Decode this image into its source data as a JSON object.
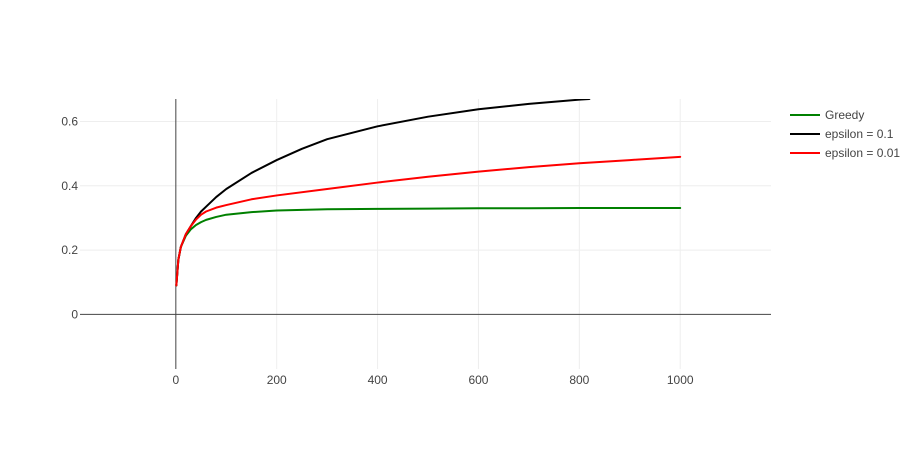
{
  "chart_data": {
    "type": "line",
    "title": "",
    "xlabel": "",
    "ylabel": "",
    "xlim": [
      -190,
      1180
    ],
    "ylim": [
      -0.17,
      0.67
    ],
    "grid": true,
    "legend_position": "top-right",
    "x_ticks": [
      0,
      200,
      400,
      600,
      800,
      1000
    ],
    "x_tick_labels": [
      "0",
      "200",
      "400",
      "600",
      "800",
      "1000"
    ],
    "y_ticks": [
      0,
      0.2,
      0.4,
      0.6
    ],
    "y_tick_labels": [
      "0",
      "0.2",
      "0.4",
      "0.6"
    ],
    "series": [
      {
        "name": "Greedy",
        "color": "#008000",
        "x": [
          1,
          5,
          10,
          20,
          30,
          40,
          50,
          60,
          80,
          100,
          150,
          200,
          300,
          400,
          500,
          600,
          700,
          800,
          900,
          1000
        ],
        "y": [
          0.09,
          0.17,
          0.21,
          0.245,
          0.265,
          0.278,
          0.287,
          0.294,
          0.303,
          0.31,
          0.318,
          0.323,
          0.327,
          0.328,
          0.329,
          0.33,
          0.33,
          0.331,
          0.331,
          0.331
        ]
      },
      {
        "name": "epsilon = 0.1",
        "color": "#000000",
        "x": [
          1,
          5,
          10,
          20,
          30,
          40,
          50,
          60,
          80,
          100,
          150,
          200,
          250,
          300,
          400,
          500,
          600,
          700,
          800,
          820
        ],
        "y": [
          0.09,
          0.17,
          0.21,
          0.25,
          0.275,
          0.3,
          0.32,
          0.335,
          0.365,
          0.39,
          0.44,
          0.48,
          0.515,
          0.545,
          0.585,
          0.615,
          0.638,
          0.655,
          0.668,
          0.67
        ]
      },
      {
        "name": "epsilon = 0.01",
        "color": "#ff0000",
        "x": [
          1,
          5,
          10,
          20,
          30,
          40,
          50,
          60,
          80,
          100,
          150,
          200,
          300,
          400,
          500,
          600,
          700,
          800,
          900,
          1000
        ],
        "y": [
          0.09,
          0.17,
          0.21,
          0.25,
          0.275,
          0.295,
          0.31,
          0.32,
          0.332,
          0.34,
          0.358,
          0.37,
          0.39,
          0.41,
          0.428,
          0.444,
          0.458,
          0.47,
          0.48,
          0.49
        ]
      }
    ]
  }
}
